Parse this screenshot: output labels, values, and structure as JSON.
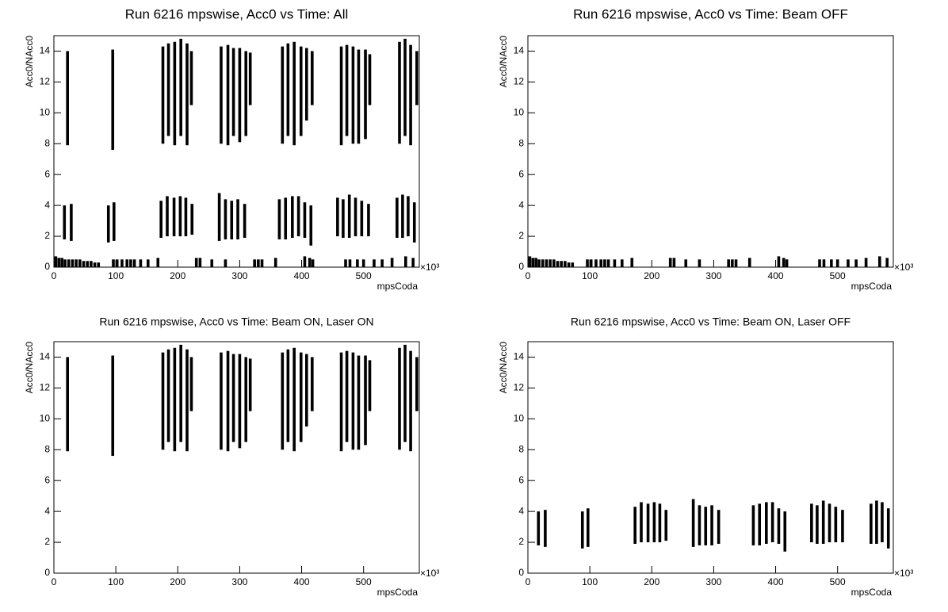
{
  "chart_data": [
    {
      "type": "range",
      "title": "Run 6216 mpswise, Acc0 vs Time: All",
      "x_label": "mpsCoda",
      "y_label": "Acc0/NAcc0",
      "x_exponent_label": "×10³",
      "color": "#000000",
      "xlim": [
        0,
        590
      ],
      "xticks": [
        0,
        100,
        200,
        300,
        400,
        500
      ],
      "ylim": [
        0,
        15
      ],
      "yticks": [
        0,
        2,
        4,
        6,
        8,
        10,
        12,
        14
      ],
      "x": [
        3,
        8,
        13,
        18,
        24,
        30,
        36,
        42,
        48,
        54,
        60,
        66,
        72,
        96,
        102,
        110,
        118,
        124,
        130,
        140,
        152,
        168,
        230,
        236,
        255,
        277,
        324,
        330,
        336,
        358,
        405,
        413,
        418,
        471,
        478,
        490,
        500,
        517,
        530,
        546,
        568,
        580,
        17,
        28,
        88,
        97,
        173,
        183,
        194,
        204,
        213,
        223,
        267,
        277,
        287,
        297,
        308,
        364,
        374,
        385,
        395,
        405,
        415,
        458,
        467,
        477,
        487,
        497,
        508,
        554,
        563,
        572,
        582,
        22,
        95,
        176,
        185,
        195,
        205,
        215,
        222,
        270,
        281,
        290,
        300,
        310,
        317,
        369,
        378,
        388,
        399,
        408,
        417,
        464,
        473,
        483,
        492,
        503,
        510,
        558,
        567,
        576,
        586
      ],
      "low": [
        0,
        0,
        0,
        0,
        0,
        0,
        0,
        0,
        0,
        0,
        0,
        0,
        0,
        0,
        0,
        0,
        0,
        0,
        0,
        0,
        0,
        0,
        0,
        0,
        0,
        0,
        0,
        0,
        0,
        0,
        0,
        0,
        0,
        0,
        0,
        0,
        0,
        0,
        0,
        0,
        0,
        0,
        1.8,
        1.7,
        1.6,
        1.7,
        1.9,
        2.0,
        2.0,
        2.0,
        2.0,
        2.1,
        1.7,
        1.8,
        1.8,
        1.8,
        1.9,
        1.8,
        1.8,
        1.9,
        2.0,
        1.9,
        1.4,
        2.0,
        1.9,
        1.9,
        2.0,
        2.0,
        2.0,
        1.9,
        1.9,
        2.0,
        1.6,
        7.9,
        7.6,
        8.0,
        8.5,
        7.9,
        8.5,
        7.9,
        10.5,
        8.0,
        7.9,
        8.5,
        8.1,
        8.5,
        10.5,
        8.0,
        8.5,
        7.9,
        8.5,
        9.5,
        10.5,
        7.9,
        8.5,
        8.0,
        8.0,
        8.3,
        10.5,
        8.0,
        8.5,
        7.9,
        10.5
      ],
      "high": [
        0.7,
        0.6,
        0.6,
        0.5,
        0.5,
        0.5,
        0.5,
        0.5,
        0.4,
        0.4,
        0.4,
        0.3,
        0.3,
        0.5,
        0.5,
        0.5,
        0.5,
        0.5,
        0.5,
        0.5,
        0.5,
        0.6,
        0.6,
        0.6,
        0.5,
        0.5,
        0.5,
        0.5,
        0.5,
        0.6,
        0.7,
        0.6,
        0.5,
        0.5,
        0.5,
        0.5,
        0.5,
        0.5,
        0.5,
        0.6,
        0.7,
        0.6,
        4.0,
        4.1,
        4.0,
        4.2,
        4.3,
        4.6,
        4.5,
        4.6,
        4.5,
        4.1,
        4.8,
        4.4,
        4.3,
        4.4,
        4.1,
        4.4,
        4.5,
        4.6,
        4.6,
        4.2,
        4.0,
        4.5,
        4.4,
        4.7,
        4.5,
        4.3,
        4.1,
        4.5,
        4.7,
        4.6,
        4.2,
        14.0,
        14.1,
        14.3,
        14.5,
        14.6,
        14.8,
        14.5,
        14.0,
        14.3,
        14.4,
        14.2,
        14.2,
        14.0,
        13.9,
        14.3,
        14.5,
        14.6,
        14.3,
        14.2,
        14.0,
        14.3,
        14.4,
        14.3,
        14.1,
        14.1,
        13.8,
        14.6,
        14.8,
        14.4,
        14.0
      ]
    },
    {
      "type": "range",
      "title": "Run 6216 mpswise, Acc0 vs Time: Beam OFF",
      "x_label": "mpsCoda",
      "y_label": "Acc0/NAcc0",
      "x_exponent_label": "×10³",
      "color": "#000000",
      "xlim": [
        0,
        590
      ],
      "xticks": [
        0,
        100,
        200,
        300,
        400,
        500
      ],
      "ylim": [
        0,
        15
      ],
      "yticks": [
        0,
        2,
        4,
        6,
        8,
        10,
        12,
        14
      ],
      "x": [
        3,
        8,
        13,
        18,
        24,
        30,
        36,
        42,
        48,
        54,
        60,
        66,
        72,
        96,
        102,
        110,
        118,
        124,
        130,
        140,
        152,
        168,
        230,
        236,
        255,
        277,
        324,
        330,
        336,
        358,
        405,
        413,
        418,
        471,
        478,
        490,
        500,
        517,
        530,
        546,
        568,
        580
      ],
      "low": [
        0,
        0,
        0,
        0,
        0,
        0,
        0,
        0,
        0,
        0,
        0,
        0,
        0,
        0,
        0,
        0,
        0,
        0,
        0,
        0,
        0,
        0,
        0,
        0,
        0,
        0,
        0,
        0,
        0,
        0,
        0,
        0,
        0,
        0,
        0,
        0,
        0,
        0,
        0,
        0,
        0,
        0
      ],
      "high": [
        0.7,
        0.6,
        0.6,
        0.5,
        0.5,
        0.5,
        0.5,
        0.5,
        0.4,
        0.4,
        0.4,
        0.3,
        0.3,
        0.5,
        0.5,
        0.5,
        0.5,
        0.5,
        0.5,
        0.5,
        0.5,
        0.6,
        0.6,
        0.6,
        0.5,
        0.5,
        0.5,
        0.5,
        0.5,
        0.6,
        0.7,
        0.6,
        0.5,
        0.5,
        0.5,
        0.5,
        0.5,
        0.5,
        0.5,
        0.6,
        0.7,
        0.6
      ]
    },
    {
      "type": "range",
      "title": "Run 6216 mpswise, Acc0 vs Time: Beam ON, Laser ON",
      "x_label": "mpsCoda",
      "y_label": "Acc0/NAcc0",
      "x_exponent_label": "×10³",
      "color": "#000000",
      "xlim": [
        0,
        590
      ],
      "xticks": [
        0,
        100,
        200,
        300,
        400,
        500
      ],
      "ylim": [
        0,
        15
      ],
      "yticks": [
        0,
        2,
        4,
        6,
        8,
        10,
        12,
        14
      ],
      "x": [
        22,
        95,
        176,
        185,
        195,
        205,
        215,
        222,
        270,
        281,
        290,
        300,
        310,
        317,
        369,
        378,
        388,
        399,
        408,
        417,
        464,
        473,
        483,
        492,
        503,
        510,
        558,
        567,
        576,
        586
      ],
      "low": [
        7.9,
        7.6,
        8.0,
        8.5,
        7.9,
        8.5,
        7.9,
        10.5,
        8.0,
        7.9,
        8.5,
        8.1,
        8.5,
        10.5,
        8.0,
        8.5,
        7.9,
        8.5,
        9.5,
        10.5,
        7.9,
        8.5,
        8.0,
        8.0,
        8.3,
        10.5,
        8.0,
        8.5,
        7.9,
        10.5
      ],
      "high": [
        14.0,
        14.1,
        14.3,
        14.5,
        14.6,
        14.8,
        14.5,
        14.0,
        14.3,
        14.4,
        14.2,
        14.2,
        14.0,
        13.9,
        14.3,
        14.5,
        14.6,
        14.3,
        14.2,
        14.0,
        14.3,
        14.4,
        14.3,
        14.1,
        14.1,
        13.8,
        14.6,
        14.8,
        14.4,
        14.0
      ]
    },
    {
      "type": "range",
      "title": "Run 6216 mpswise, Acc0 vs Time: Beam ON, Laser OFF",
      "x_label": "mpsCoda",
      "y_label": "Acc0/NAcc0",
      "x_exponent_label": "×10³",
      "color": "#000000",
      "xlim": [
        0,
        590
      ],
      "xticks": [
        0,
        100,
        200,
        300,
        400,
        500
      ],
      "ylim": [
        0,
        15
      ],
      "yticks": [
        0,
        2,
        4,
        6,
        8,
        10,
        12,
        14
      ],
      "x": [
        17,
        28,
        88,
        97,
        173,
        183,
        194,
        204,
        213,
        223,
        267,
        277,
        287,
        297,
        308,
        364,
        374,
        385,
        395,
        405,
        415,
        458,
        467,
        477,
        487,
        497,
        508,
        554,
        563,
        572,
        582
      ],
      "low": [
        1.8,
        1.7,
        1.6,
        1.7,
        1.9,
        2.0,
        2.0,
        2.0,
        2.0,
        2.1,
        1.7,
        1.8,
        1.8,
        1.8,
        1.9,
        1.8,
        1.8,
        1.9,
        2.0,
        1.9,
        1.4,
        2.0,
        1.9,
        1.9,
        2.0,
        2.0,
        2.0,
        1.9,
        1.9,
        2.0,
        1.6
      ],
      "high": [
        4.0,
        4.1,
        4.0,
        4.2,
        4.3,
        4.6,
        4.5,
        4.6,
        4.5,
        4.1,
        4.8,
        4.4,
        4.3,
        4.4,
        4.1,
        4.4,
        4.5,
        4.6,
        4.6,
        4.2,
        4.0,
        4.5,
        4.4,
        4.7,
        4.5,
        4.3,
        4.1,
        4.5,
        4.7,
        4.6,
        4.2
      ]
    }
  ]
}
